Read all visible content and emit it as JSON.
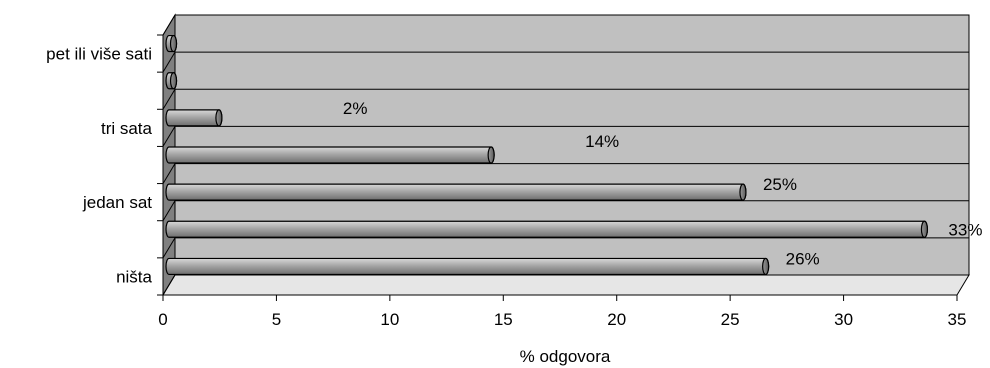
{
  "chart_data": {
    "type": "bar",
    "orientation": "horizontal",
    "style": "3d-cylinder",
    "categories": [
      "ništa",
      "",
      "jedan sat",
      "",
      "tri sata",
      "",
      "pet ili više sati"
    ],
    "values": [
      26.3,
      33.3,
      25.3,
      14.2,
      2.2,
      0.2,
      0.2
    ],
    "data_labels": [
      "26%",
      "33%",
      "25%",
      "14%",
      "2%",
      "",
      ""
    ],
    "xlabel": "% odgovora",
    "ylabel": "",
    "title": "",
    "xlim": [
      0,
      35
    ],
    "xticks": [
      "0",
      "5",
      "10",
      "15",
      "20",
      "25",
      "30",
      "35"
    ],
    "grid": "horizontal",
    "legend": "none",
    "colors": {
      "plot_back": "#c0c0c0",
      "plot_side": "#808080",
      "bar_fill": "#a6a6a6",
      "bar_edge": "#000000",
      "grid": "#000000"
    }
  }
}
